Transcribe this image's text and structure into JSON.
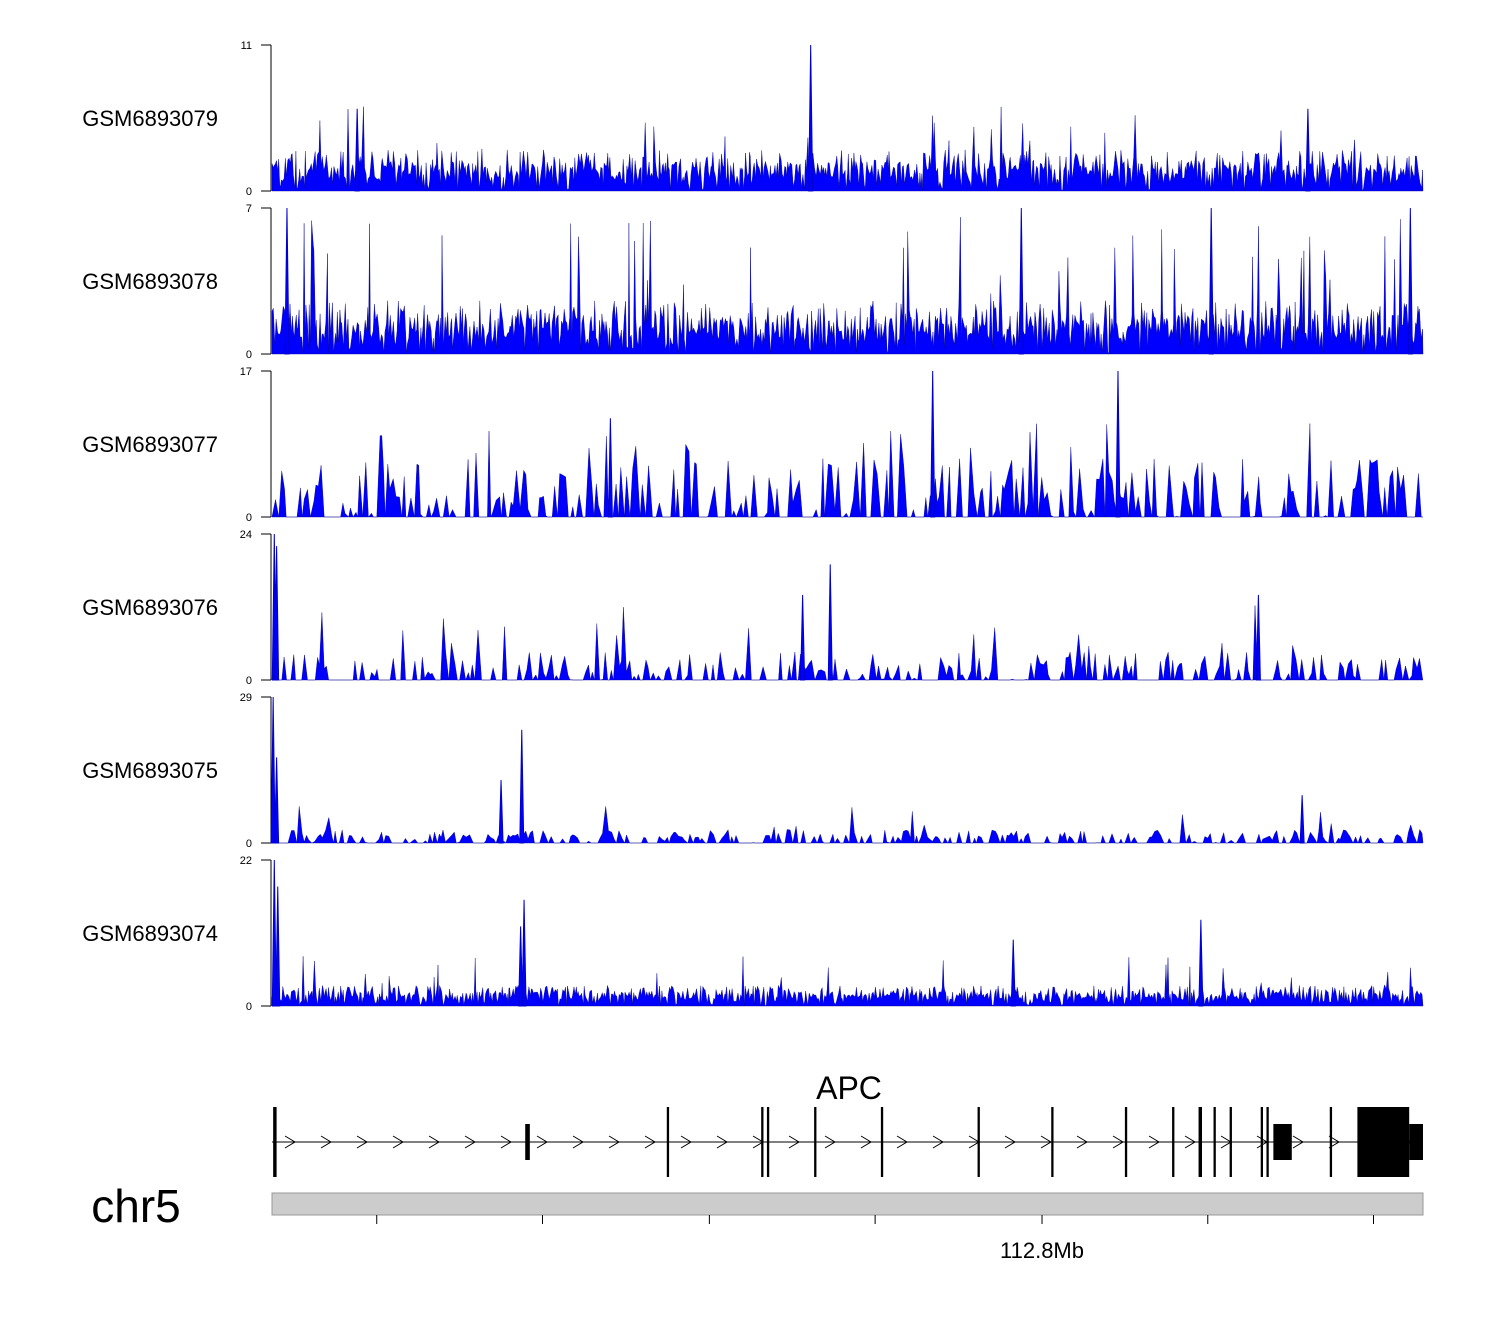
{
  "chart_data": {
    "type": "area",
    "series_color": "#0000FF",
    "tracks": [
      {
        "name": "GSM6893079",
        "ylim": [
          0,
          11
        ],
        "y_tick_labels": [
          "0",
          "11"
        ],
        "profile": {
          "base": 1.5,
          "spread": 2.2,
          "spike_max": 6.5,
          "spike_rate": 0.05,
          "density": 1.0
        },
        "peaks": [
          {
            "x": 0.468,
            "y": 11
          },
          {
            "x": 0.074,
            "y": 6.2
          },
          {
            "x": 0.9,
            "y": 6.2
          }
        ]
      },
      {
        "name": "GSM6893078",
        "ylim": [
          0,
          7
        ],
        "y_tick_labels": [
          "0",
          "7"
        ],
        "profile": {
          "base": 1.1,
          "spread": 1.9,
          "spike_max": 6.8,
          "spike_rate": 0.06,
          "density": 1.0
        },
        "peaks": [
          {
            "x": 0.013,
            "y": 7
          },
          {
            "x": 0.651,
            "y": 7
          },
          {
            "x": 0.816,
            "y": 7
          },
          {
            "x": 0.989,
            "y": 7
          }
        ]
      },
      {
        "name": "GSM6893077",
        "ylim": [
          0,
          17
        ],
        "y_tick_labels": [
          "0",
          "17"
        ],
        "profile": {
          "base": 5.5,
          "spread": 3.5,
          "spike_max": 11,
          "spike_rate": 0.05,
          "density": 0.45
        },
        "peaks": [
          {
            "x": 0.574,
            "y": 17
          },
          {
            "x": 0.735,
            "y": 17
          },
          {
            "x": 0.294,
            "y": 11.5
          }
        ]
      },
      {
        "name": "GSM6893076",
        "ylim": [
          0,
          24
        ],
        "y_tick_labels": [
          "0",
          "24"
        ],
        "profile": {
          "base": 3.5,
          "spread": 2.5,
          "spike_max": 14,
          "spike_rate": 0.05,
          "density": 0.45
        },
        "peaks": [
          {
            "x": 0.002,
            "y": 24
          },
          {
            "x": 0.004,
            "y": 22
          },
          {
            "x": 0.485,
            "y": 19
          },
          {
            "x": 0.461,
            "y": 14
          },
          {
            "x": 0.857,
            "y": 14
          }
        ]
      },
      {
        "name": "GSM6893075",
        "ylim": [
          0,
          29
        ],
        "y_tick_labels": [
          "0",
          "29"
        ],
        "profile": {
          "base": 1.5,
          "spread": 1.8,
          "spike_max": 8,
          "spike_rate": 0.04,
          "density": 0.5
        },
        "peaks": [
          {
            "x": 0.001,
            "y": 29
          },
          {
            "x": 0.004,
            "y": 17
          },
          {
            "x": 0.217,
            "y": 22.5
          },
          {
            "x": 0.199,
            "y": 12.5
          },
          {
            "x": 0.895,
            "y": 9.5
          }
        ]
      },
      {
        "name": "GSM6893074",
        "ylim": [
          0,
          22
        ],
        "y_tick_labels": [
          "0",
          "22"
        ],
        "profile": {
          "base": 1.5,
          "spread": 2.2,
          "spike_max": 7.5,
          "spike_rate": 0.04,
          "density": 1.0
        },
        "peaks": [
          {
            "x": 0.002,
            "y": 22
          },
          {
            "x": 0.005,
            "y": 18
          },
          {
            "x": 0.219,
            "y": 16
          },
          {
            "x": 0.216,
            "y": 12
          },
          {
            "x": 0.807,
            "y": 13
          },
          {
            "x": 0.644,
            "y": 10
          }
        ]
      }
    ],
    "gene": {
      "name": "APC",
      "strand": "+",
      "start": 0.0,
      "end": 1.0,
      "exons": [
        {
          "start": 0.001,
          "end": 0.004,
          "height": "full"
        },
        {
          "start": 0.22,
          "end": 0.224,
          "height": "thin"
        },
        {
          "start": 0.343,
          "end": 0.345,
          "height": "full"
        },
        {
          "start": 0.425,
          "end": 0.427,
          "height": "full"
        },
        {
          "start": 0.43,
          "end": 0.432,
          "height": "full"
        },
        {
          "start": 0.471,
          "end": 0.473,
          "height": "full"
        },
        {
          "start": 0.529,
          "end": 0.531,
          "height": "full"
        },
        {
          "start": 0.613,
          "end": 0.615,
          "height": "full"
        },
        {
          "start": 0.677,
          "end": 0.679,
          "height": "full"
        },
        {
          "start": 0.741,
          "end": 0.743,
          "height": "full"
        },
        {
          "start": 0.782,
          "end": 0.784,
          "height": "full"
        },
        {
          "start": 0.805,
          "end": 0.808,
          "height": "full"
        },
        {
          "start": 0.818,
          "end": 0.82,
          "height": "full"
        },
        {
          "start": 0.832,
          "end": 0.834,
          "height": "full"
        },
        {
          "start": 0.859,
          "end": 0.861,
          "height": "full"
        },
        {
          "start": 0.864,
          "end": 0.866,
          "height": "full"
        },
        {
          "start": 0.87,
          "end": 0.886,
          "height": "cds"
        },
        {
          "start": 0.919,
          "end": 0.921,
          "height": "full"
        },
        {
          "start": 0.943,
          "end": 0.988,
          "height": "tall"
        },
        {
          "start": 0.988,
          "end": 1.0,
          "height": "cds"
        }
      ]
    },
    "chromosome": "chr5",
    "x_axis": {
      "tick_positions": [
        0.091,
        0.235,
        0.38,
        0.524,
        0.669,
        0.813,
        0.957
      ],
      "labels": [
        {
          "at": 0.669,
          "text": "112.8Mb"
        }
      ]
    }
  }
}
